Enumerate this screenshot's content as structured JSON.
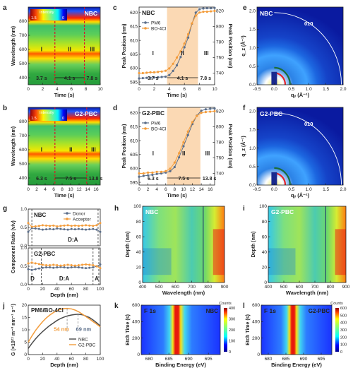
{
  "figure": {
    "panel_letters": [
      "a",
      "b",
      "c",
      "d",
      "e",
      "f",
      "g",
      "h",
      "i",
      "j",
      "k",
      "l"
    ]
  },
  "chart_data": [
    {
      "id": "a",
      "type": "heatmap",
      "title": "NBC",
      "xlabel": "Time (s)",
      "ylabel": "Wavelength (nm)",
      "xlim": [
        0,
        10
      ],
      "ylim": [
        350,
        900
      ],
      "xticks": [
        "0",
        "2",
        "4",
        "6",
        "8",
        "10"
      ],
      "yticks": [
        "400",
        "500",
        "600",
        "700",
        "800"
      ],
      "colorbar": {
        "label": "Intensity",
        "max": "1.5",
        "min": "0"
      },
      "bands_nm": [
        {
          "center": 585,
          "intensity": "high"
        },
        {
          "center": 800,
          "intensity": "high"
        }
      ],
      "stage_boundaries_s": [
        3.7,
        7.8
      ],
      "stages": [
        "I",
        "II",
        "III"
      ],
      "annotations": [
        "3.7 s",
        "4.1 s",
        "7.8 s"
      ]
    },
    {
      "id": "b",
      "type": "heatmap",
      "title": "G2-PBC",
      "xlabel": "Time (s)",
      "ylabel": "Wavelength (nm)",
      "xlim": [
        0,
        17
      ],
      "ylim": [
        350,
        900
      ],
      "xticks": [
        "0",
        "2",
        "4",
        "6",
        "8",
        "10",
        "12",
        "14",
        "16"
      ],
      "yticks": [
        "400",
        "500",
        "600",
        "700",
        "800"
      ],
      "colorbar": {
        "label": "Intensity",
        "max": "1.5",
        "min": "0"
      },
      "bands_nm": [
        {
          "center": 585,
          "intensity": "high"
        },
        {
          "center": 800,
          "intensity": "high"
        }
      ],
      "stage_boundaries_s": [
        6.3,
        13.8
      ],
      "stages": [
        "I",
        "II",
        "III"
      ],
      "annotations": [
        "6.3 s",
        "7.5 s",
        "13.8 s"
      ]
    },
    {
      "id": "c",
      "type": "line",
      "title": "NBC",
      "xlabel": "Time (s)",
      "ylabel": "Peak Position (nm)",
      "y2label": "Peak Position (nm)",
      "xlim": [
        0,
        10
      ],
      "ylim": [
        594,
        622
      ],
      "y2lim": [
        725,
        825
      ],
      "xticks": [
        "0",
        "2",
        "4",
        "6",
        "8",
        "10"
      ],
      "yticks": [
        "595",
        "600",
        "605",
        "610",
        "615",
        "620"
      ],
      "y2ticks": [
        "740",
        "760",
        "780",
        "800",
        "820"
      ],
      "shaded_region_s": [
        3.7,
        7.8
      ],
      "stages": [
        "I",
        "II",
        "III"
      ],
      "annotations": [
        "3.7 s",
        "4.1 s",
        "7.8 s"
      ],
      "series": [
        {
          "name": "PM6",
          "axis": "left",
          "color": "#5b6e8a",
          "x": [
            0,
            0.5,
            1,
            1.5,
            2,
            2.5,
            3,
            3.5,
            4,
            4.5,
            5,
            5.5,
            6,
            6.5,
            7,
            7.5,
            8,
            8.5,
            9,
            9.5,
            10
          ],
          "y": [
            596.3,
            596.4,
            596.5,
            596.5,
            596.6,
            596.7,
            596.8,
            596.9,
            597.5,
            599,
            601,
            604,
            607.5,
            611,
            616,
            620,
            621.2,
            621.5,
            621.6,
            621.6,
            621.7
          ]
        },
        {
          "name": "BO-4Cl",
          "axis": "right",
          "color": "#f39c3b",
          "x": [
            0,
            0.5,
            1,
            1.5,
            2,
            2.5,
            3,
            3.5,
            4,
            4.5,
            5,
            5.5,
            6,
            6.5,
            7,
            7.5,
            8,
            8.5,
            9,
            9.5,
            10
          ],
          "y": [
            740,
            740,
            740.5,
            741,
            741,
            741.5,
            742,
            743,
            746,
            752,
            760,
            768,
            778,
            790,
            804,
            814,
            818,
            819,
            819,
            819.5,
            820
          ]
        }
      ]
    },
    {
      "id": "d",
      "type": "line",
      "title": "G2-PBC",
      "xlabel": "Time (s)",
      "ylabel": "Peak Position (nm)",
      "y2label": "Peak Position (nm)",
      "xlim": [
        0,
        17
      ],
      "ylim": [
        594,
        622
      ],
      "y2lim": [
        725,
        825
      ],
      "xticks": [
        "0",
        "2",
        "4",
        "6",
        "8",
        "10",
        "12",
        "14",
        "16"
      ],
      "yticks": [
        "595",
        "600",
        "605",
        "610",
        "615",
        "620"
      ],
      "y2ticks": [
        "740",
        "760",
        "780",
        "800",
        "820"
      ],
      "shaded_region_s": [
        6.3,
        13.8
      ],
      "stages": [
        "I",
        "II",
        "III"
      ],
      "annotations": [
        "6.3 s",
        "7.5 s",
        "13.8 s"
      ],
      "series": [
        {
          "name": "PM6",
          "axis": "left",
          "color": "#5b6e8a",
          "x": [
            0,
            1,
            2,
            3,
            4,
            5,
            6,
            7,
            8,
            9,
            10,
            11,
            12,
            13,
            14,
            15,
            16,
            17
          ],
          "y": [
            597,
            597.3,
            597.5,
            597.7,
            598,
            598.2,
            598.5,
            599,
            600.5,
            604,
            608,
            612,
            616,
            619,
            620.8,
            621.3,
            621.5,
            621.6
          ]
        },
        {
          "name": "BO-4Cl",
          "axis": "right",
          "color": "#f39c3b",
          "x": [
            0,
            1,
            2,
            3,
            4,
            5,
            6,
            7,
            8,
            9,
            10,
            11,
            12,
            13,
            14,
            15,
            16,
            17
          ],
          "y": [
            740,
            740,
            741,
            741,
            742,
            742,
            743,
            746,
            754,
            766,
            780,
            794,
            806,
            814,
            818,
            819,
            819.5,
            820
          ]
        }
      ]
    },
    {
      "id": "e",
      "type": "heatmap",
      "title": "NBC",
      "xlabel": "qᵧ (Å⁻¹)",
      "ylabel": "q_z (Å⁻¹)",
      "xlim": [
        -0.5,
        2.0
      ],
      "ylim": [
        0,
        2.1
      ],
      "xticks": [
        "-0.5",
        "0.0",
        "0.5",
        "1.0",
        "1.5",
        "2.0"
      ],
      "yticks": [
        "0.0",
        "0.5",
        "1.0",
        "1.5",
        "2.0"
      ],
      "annotations": [
        "010"
      ]
    },
    {
      "id": "f",
      "type": "heatmap",
      "title": "G2-PBC",
      "xlabel": "qᵧ (Å⁻¹)",
      "ylabel": "q_z (Å⁻¹)",
      "xlim": [
        -0.5,
        2.0
      ],
      "ylim": [
        0,
        2.1
      ],
      "xticks": [
        "-0.5",
        "0.0",
        "0.5",
        "1.0",
        "1.5",
        "2.0"
      ],
      "yticks": [
        "0.0",
        "0.5",
        "1.0",
        "1.5",
        "2.0"
      ],
      "annotations": [
        "010"
      ]
    },
    {
      "id": "g",
      "type": "line",
      "xlabel": "Depth (nm)",
      "ylabel": "Component Ratio (v/v)",
      "xlim": [
        0,
        100
      ],
      "ylim": [
        0,
        1
      ],
      "xticks": [
        "0",
        "20",
        "40",
        "60",
        "80",
        "100"
      ],
      "yticks": [
        "0.0",
        "0.5",
        "1.0"
      ],
      "subplots": [
        {
          "title": "NBC",
          "region_labels": [
            "D:A"
          ],
          "dashed_at": [
            5,
            97
          ],
          "series": [
            {
              "name": "Donor",
              "color": "#5b6e8a",
              "x": [
                0,
                5,
                10,
                15,
                20,
                25,
                30,
                35,
                40,
                45,
                50,
                55,
                60,
                65,
                70,
                75,
                80,
                85,
                90,
                95,
                100
              ],
              "y": [
                0.38,
                0.48,
                0.47,
                0.46,
                0.44,
                0.45,
                0.46,
                0.45,
                0.47,
                0.46,
                0.45,
                0.44,
                0.46,
                0.45,
                0.46,
                0.45,
                0.44,
                0.45,
                0.46,
                0.44,
                0.38
              ]
            },
            {
              "name": "Acceptor",
              "color": "#f39c3b",
              "x": [
                0,
                5,
                10,
                15,
                20,
                25,
                30,
                35,
                40,
                45,
                50,
                55,
                60,
                65,
                70,
                75,
                80,
                85,
                90,
                95,
                100
              ],
              "y": [
                0.62,
                0.52,
                0.53,
                0.54,
                0.56,
                0.55,
                0.54,
                0.55,
                0.53,
                0.54,
                0.55,
                0.56,
                0.54,
                0.55,
                0.54,
                0.55,
                0.56,
                0.55,
                0.54,
                0.56,
                0.62
              ]
            }
          ]
        },
        {
          "title": "G2-PBC",
          "region_labels": [
            "D",
            "D:A",
            "A"
          ],
          "dashed_at": [
            5,
            18,
            90,
            98
          ],
          "series": [
            {
              "name": "Donor",
              "color": "#5b6e8a",
              "x": [
                0,
                5,
                10,
                15,
                20,
                25,
                30,
                35,
                40,
                45,
                50,
                55,
                60,
                65,
                70,
                75,
                80,
                85,
                90,
                95,
                100
              ],
              "y": [
                0.42,
                0.4,
                0.42,
                0.44,
                0.46,
                0.47,
                0.47,
                0.46,
                0.47,
                0.48,
                0.47,
                0.46,
                0.47,
                0.48,
                0.47,
                0.46,
                0.45,
                0.46,
                0.47,
                0.5,
                0.55
              ]
            },
            {
              "name": "Acceptor",
              "color": "#f39c3b",
              "x": [
                0,
                5,
                10,
                15,
                20,
                25,
                30,
                35,
                40,
                45,
                50,
                55,
                60,
                65,
                70,
                75,
                80,
                85,
                90,
                95,
                100
              ],
              "y": [
                0.58,
                0.6,
                0.58,
                0.56,
                0.54,
                0.53,
                0.53,
                0.54,
                0.53,
                0.52,
                0.53,
                0.54,
                0.53,
                0.52,
                0.53,
                0.54,
                0.55,
                0.54,
                0.53,
                0.5,
                0.45
              ]
            }
          ]
        }
      ]
    },
    {
      "id": "h",
      "type": "heatmap",
      "title": "NBC",
      "xlabel": "Wavelength (nm)",
      "ylabel": "Depth (nm)",
      "xlim": [
        400,
        900
      ],
      "ylim": [
        0,
        100
      ],
      "xticks": [
        "400",
        "500",
        "600",
        "700",
        "800",
        "900"
      ],
      "yticks": [
        "0",
        "20",
        "40",
        "60",
        "80",
        "100"
      ]
    },
    {
      "id": "i",
      "type": "heatmap",
      "title": "G2-PBC",
      "xlabel": "Wavelength (nm)",
      "ylabel": "Depth (nm)",
      "xlim": [
        400,
        900
      ],
      "ylim": [
        0,
        100
      ],
      "xticks": [
        "400",
        "500",
        "600",
        "700",
        "800",
        "900"
      ],
      "yticks": [
        "0",
        "20",
        "40",
        "60",
        "80",
        "100"
      ]
    },
    {
      "id": "j",
      "type": "line",
      "title": "PM6/BO-4Cl",
      "xlabel": "Depth (nm)",
      "ylabel": "G (×10²⁷ m⁻³ nm⁻¹ s⁻¹)",
      "xlim": [
        0,
        100
      ],
      "ylim": [
        0,
        20
      ],
      "xticks": [
        "0",
        "20",
        "40",
        "60",
        "80",
        "100"
      ],
      "yticks": [
        "0",
        "5",
        "10",
        "15",
        "20"
      ],
      "annotations": [
        "54 nm",
        "69 nm"
      ],
      "series": [
        {
          "name": "NBC",
          "color": "#4a4a4a",
          "x": [
            0,
            5,
            10,
            15,
            20,
            25,
            30,
            35,
            40,
            45,
            50,
            55,
            60,
            65,
            69,
            75,
            80,
            85,
            90,
            95,
            100
          ],
          "y": [
            2.5,
            4.5,
            6.3,
            7.9,
            9.3,
            10.6,
            11.8,
            12.8,
            13.8,
            14.6,
            15.2,
            15.7,
            16.0,
            16.2,
            16.3,
            16.1,
            15.6,
            15.0,
            14.0,
            12.9,
            11.6
          ]
        },
        {
          "name": "G2-PBC",
          "color": "#f39c3b",
          "x": [
            0,
            5,
            10,
            15,
            20,
            25,
            30,
            35,
            40,
            45,
            50,
            54,
            60,
            65,
            70,
            75,
            80,
            85,
            90,
            95,
            100
          ],
          "y": [
            5.0,
            7.5,
            9.7,
            11.6,
            13.3,
            14.8,
            16.0,
            17.0,
            17.8,
            18.3,
            18.6,
            18.7,
            18.5,
            18.0,
            17.3,
            16.4,
            15.4,
            14.4,
            13.3,
            12.3,
            11.2
          ]
        }
      ]
    },
    {
      "id": "k",
      "type": "heatmap",
      "title": "NBC",
      "xlabel": "Binding Energy (eV)",
      "ylabel": "Etch Time (s)",
      "xlim": [
        678,
        698
      ],
      "ylim": [
        0,
        600
      ],
      "xticks": [
        "680",
        "685",
        "690",
        "695"
      ],
      "yticks": [
        "0",
        "200",
        "400",
        "600"
      ],
      "colorbar": {
        "label": "Counts",
        "ticks": [
          "0",
          "100",
          "200",
          "300",
          "400"
        ]
      },
      "annotations": [
        "F 1s"
      ],
      "peak_eV": 686.5
    },
    {
      "id": "l",
      "type": "heatmap",
      "title": "G2-PBC",
      "xlabel": "Binding Energy (eV)",
      "ylabel": "Etch Time (s)",
      "xlim": [
        678,
        698
      ],
      "ylim": [
        0,
        600
      ],
      "xticks": [
        "680",
        "685",
        "690",
        "695"
      ],
      "yticks": [
        "0",
        "200",
        "400",
        "600"
      ],
      "colorbar": {
        "label": "Counts",
        "ticks": [
          "0",
          "100",
          "200",
          "300",
          "400",
          "500",
          "600"
        ]
      },
      "annotations": [
        "F 1s"
      ],
      "peak_eV": 686.5
    }
  ]
}
